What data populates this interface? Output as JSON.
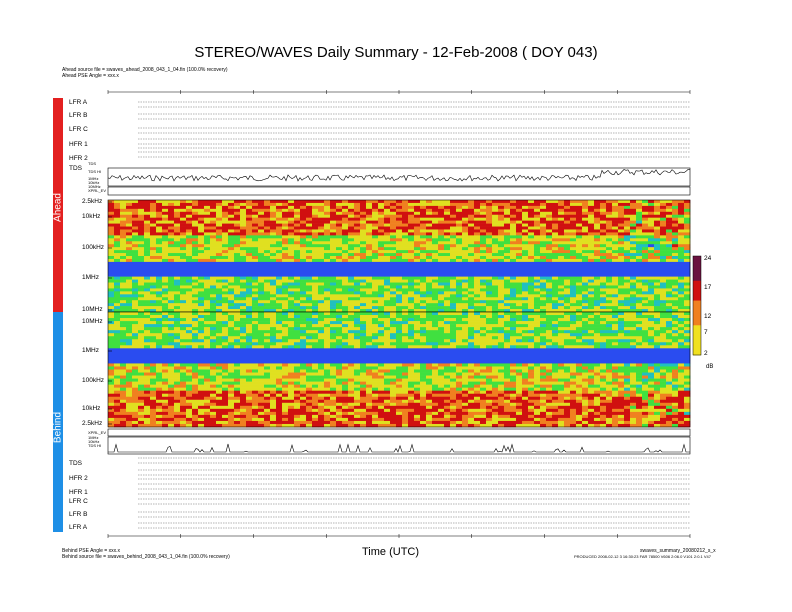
{
  "header": {
    "title": "STEREO/WAVES Daily Summary - 12-Feb-2008 ( DOY 043)",
    "ahead_source": "Ahead source file = swaves_ahead_2008_043_1_04.fin (100.0% recovery)",
    "ahead_pse": "Ahead PSE Angle = xxx.x"
  },
  "footer": {
    "behind_pse": "Behind PSE Angle = xxx.x",
    "behind_source": "Behind source file = swaves_behind_2008_043_1_04.fin (100.0% recovery)",
    "xlabel": "Time (UTC)",
    "product": "swaves_summary_20080212_s_x",
    "produced": "PRODUCED 2008-02-12 3 16:30:23 FAR 78500 V606 2:06.0 V101 2:0.1 V47"
  },
  "sidebar": {
    "ahead": "Ahead",
    "behind": "Behind",
    "ahead_color": "#e32020",
    "behind_color": "#1e8fe6"
  },
  "rows_ahead": [
    "LFR A",
    "LFR B",
    "LFR C",
    "HFR 1",
    "HFR 2",
    "TDS"
  ],
  "rows_behind": [
    "TDS",
    "HFR 2",
    "HFR 1",
    "LFR C",
    "LFR B",
    "LFR A"
  ],
  "chart_data": {
    "type": "heatmap",
    "x_unit": "UTC hours",
    "xlim": [
      0,
      24
    ],
    "ahead_y_ticks": [
      "2.5kHz",
      "10kHz",
      "100kHz",
      "1MHz",
      "10MHz"
    ],
    "behind_y_ticks": [
      "10MHz",
      "1MHz",
      "100kHz",
      "10kHz",
      "2.5kHz"
    ],
    "tds_ahead_labels": [
      "TDS",
      "TDS HI",
      "1MHz",
      "10kHz",
      "10MHz",
      "XPRL_EV"
    ],
    "tds_behind_labels": [
      "XPRL_EV",
      "1MHz",
      "10kHz",
      "TDS HI"
    ],
    "colorbar": {
      "ticks": [
        "24",
        "17",
        "12",
        "7",
        "2"
      ],
      "unit": "dB",
      "range": [
        2,
        24
      ]
    }
  }
}
